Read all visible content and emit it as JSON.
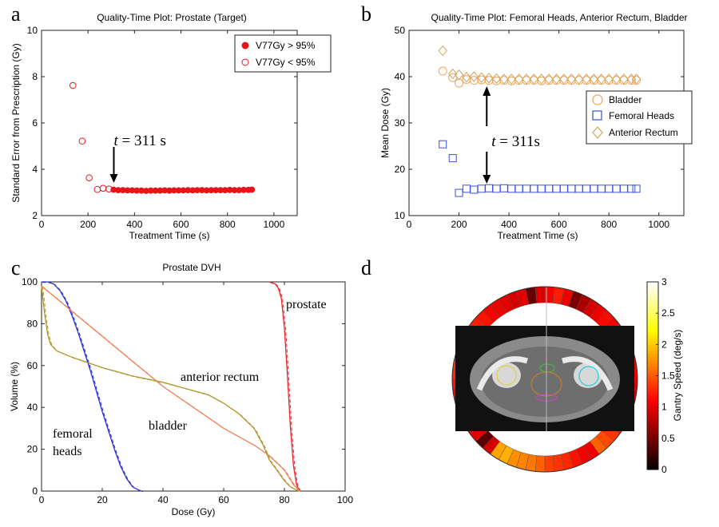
{
  "panels": {
    "a": {
      "letter": "a",
      "chart_data": {
        "type": "scatter",
        "title": "Quality-Time Plot: Prostate (Target)",
        "xlabel": "Treatment Time (s)",
        "ylabel": "Standard Error from Prescription (Gy)",
        "xlim": [
          0,
          1100
        ],
        "ylim": [
          2,
          10
        ],
        "xticks": [
          0,
          200,
          400,
          600,
          800,
          1000
        ],
        "yticks": [
          2,
          4,
          6,
          8,
          10
        ],
        "legend_position": "top-right",
        "series": [
          {
            "name": "V77Gy > 95%",
            "marker": "filled-circle",
            "color": "#e8141a",
            "x": [
              310,
              330,
              350,
              370,
              390,
              410,
              430,
              450,
              470,
              490,
              510,
              530,
              550,
              570,
              590,
              610,
              630,
              650,
              670,
              690,
              710,
              730,
              750,
              770,
              790,
              810,
              830,
              850,
              870,
              890,
              905
            ],
            "y": [
              3.12,
              3.1,
              3.1,
              3.09,
              3.09,
              3.08,
              3.08,
              3.07,
              3.08,
              3.08,
              3.08,
              3.09,
              3.08,
              3.09,
              3.09,
              3.09,
              3.1,
              3.09,
              3.1,
              3.1,
              3.09,
              3.1,
              3.1,
              3.1,
              3.1,
              3.11,
              3.1,
              3.1,
              3.11,
              3.11,
              3.12
            ]
          },
          {
            "name": "V77Gy < 95%",
            "marker": "open-circle",
            "color": "#e8141a",
            "x": [
              135,
              175,
              205,
              240,
              265,
              290
            ],
            "y": [
              7.62,
              5.22,
              3.63,
              3.13,
              3.18,
              3.15
            ]
          }
        ],
        "annotation": {
          "prefix": "t",
          "text": " = 311 s",
          "x": 311
        }
      }
    },
    "b": {
      "letter": "b",
      "chart_data": {
        "type": "scatter",
        "title": "Quality-Time Plot: Femoral Heads, Anterior Rectum, Bladder",
        "xlabel": "Treatment Time (s)",
        "ylabel": "Mean Dose (Gy)",
        "xlim": [
          0,
          1100
        ],
        "ylim": [
          10,
          50
        ],
        "xticks": [
          0,
          200,
          400,
          600,
          800,
          1000
        ],
        "yticks": [
          10,
          20,
          30,
          40,
          50
        ],
        "legend_position": "right",
        "series": [
          {
            "name": "Bladder",
            "marker": "circle",
            "color": "#f2a35a",
            "x": [
              135,
              175,
              200,
              230,
              260,
              290,
              320,
              350,
              380,
              410,
              440,
              470,
              500,
              530,
              560,
              590,
              620,
              650,
              680,
              710,
              740,
              770,
              800,
              830,
              860,
              890,
              910
            ],
            "y": [
              41.2,
              39.8,
              38.6,
              39.4,
              39.2,
              39.3,
              39.2,
              39.1,
              39.2,
              39.1,
              39.2,
              39.2,
              39.2,
              39.1,
              39.2,
              39.2,
              39.2,
              39.2,
              39.2,
              39.2,
              39.2,
              39.2,
              39.2,
              39.2,
              39.2,
              39.2,
              39.2
            ]
          },
          {
            "name": "Femoral Heads",
            "marker": "square",
            "color": "#3a4fd6",
            "x": [
              135,
              175,
              200,
              230,
              260,
              290,
              320,
              350,
              380,
              410,
              440,
              470,
              500,
              530,
              560,
              590,
              620,
              650,
              680,
              710,
              740,
              770,
              800,
              830,
              860,
              890,
              910
            ],
            "y": [
              25.4,
              22.4,
              14.9,
              15.8,
              15.6,
              15.8,
              15.9,
              15.8,
              15.9,
              15.8,
              15.8,
              15.8,
              15.8,
              15.8,
              15.8,
              15.8,
              15.8,
              15.8,
              15.8,
              15.8,
              15.8,
              15.8,
              15.8,
              15.8,
              15.8,
              15.8,
              15.8
            ]
          },
          {
            "name": "Anterior Rectum",
            "marker": "diamond",
            "color": "#d6a35a",
            "x": [
              135,
              175,
              200,
              230,
              260,
              290,
              320,
              350,
              380,
              410,
              440,
              470,
              500,
              530,
              560,
              590,
              620,
              650,
              680,
              710,
              740,
              770,
              800,
              830,
              860,
              890,
              910
            ],
            "y": [
              45.6,
              40.6,
              40.4,
              39.9,
              40.0,
              39.8,
              39.7,
              39.6,
              39.5,
              39.5,
              39.5,
              39.5,
              39.5,
              39.5,
              39.5,
              39.5,
              39.5,
              39.5,
              39.5,
              39.5,
              39.5,
              39.5,
              39.5,
              39.5,
              39.5,
              39.5,
              39.5
            ]
          }
        ],
        "annotation": {
          "prefix": "t",
          "text": " = 311s",
          "x": 311
        }
      }
    },
    "c": {
      "letter": "c",
      "chart_data": {
        "type": "line",
        "title": "Prostate DVH",
        "xlabel": "Dose (Gy)",
        "ylabel": "Volume (%)",
        "xlim": [
          0,
          100
        ],
        "ylim": [
          0,
          100
        ],
        "xticks": [
          0,
          20,
          40,
          60,
          80,
          100
        ],
        "yticks": [
          0,
          20,
          40,
          60,
          80,
          100
        ],
        "series": [
          {
            "label": "prostate",
            "color": "#e8262e",
            "x": [
              75,
              76,
              77,
              78,
              79,
              80,
              81,
              82,
              83,
              84,
              85
            ],
            "y": [
              100,
              99.5,
              99,
              97,
              92,
              78,
              55,
              30,
              12,
              3,
              0
            ]
          },
          {
            "label": "femoral heads",
            "color": "#2b35d8",
            "x": [
              0,
              2,
              4,
              6,
              8,
              10,
              12,
              14,
              16,
              18,
              20,
              22,
              24,
              26,
              28,
              30,
              32,
              33
            ],
            "y": [
              100,
              100,
              99,
              96,
              91,
              84,
              76,
              67,
              58,
              48,
              38,
              29,
              20,
              12,
              6,
              2,
              0.5,
              0
            ]
          },
          {
            "label": "bladder",
            "color": "#f08058",
            "x": [
              0,
              10,
              20,
              30,
              40,
              50,
              60,
              65,
              70,
              75,
              80,
              83,
              85
            ],
            "y": [
              98,
              86,
              74,
              62,
              50,
              40,
              30,
              26,
              22,
              17,
              10,
              3,
              0
            ]
          },
          {
            "label": "anterior rectum",
            "color": "#b0962e",
            "x": [
              0,
              1,
              2,
              3,
              5,
              10,
              20,
              30,
              40,
              45,
              50,
              55,
              60,
              65,
              70,
              73,
              75,
              78,
              80,
              82,
              84,
              85
            ],
            "y": [
              98,
              85,
              75,
              70,
              67,
              64,
              59,
              55,
              52,
              50,
              48,
              46,
              42,
              37,
              30,
              22,
              15,
              9,
              5,
              2,
              0.5,
              0
            ]
          }
        ]
      }
    },
    "d": {
      "letter": "d",
      "colorbar": {
        "label": "Gantry Speed (deg/s)",
        "min": 0,
        "max": 3,
        "ticks": [
          "0",
          "0.5",
          "1",
          "1.5",
          "2",
          "2.5",
          "3"
        ]
      },
      "ring_speeds": [
        1.1,
        1.25,
        1.05,
        0.55,
        0.75,
        0.95,
        1.05,
        1.15,
        1.1,
        1.2,
        0.9,
        1.0,
        1.05,
        1.1,
        1.05,
        1.0,
        0.95,
        1.05,
        1.1,
        1.15,
        1.25,
        1.35,
        1.45,
        1.55,
        1.05,
        1.1,
        1.2,
        1.3,
        1.35,
        1.4,
        1.55,
        1.65,
        1.7,
        1.75,
        1.9,
        1.85,
        0.95,
        0.4,
        1.0,
        1.1,
        1.15,
        0.6,
        0.9,
        1.05,
        1.2,
        1.3,
        1.35,
        1.45,
        1.5,
        1.4,
        1.3,
        1.25,
        1.2,
        1.1,
        1.05,
        1.0,
        0.95,
        1.0,
        0.45,
        0.95
      ]
    }
  }
}
